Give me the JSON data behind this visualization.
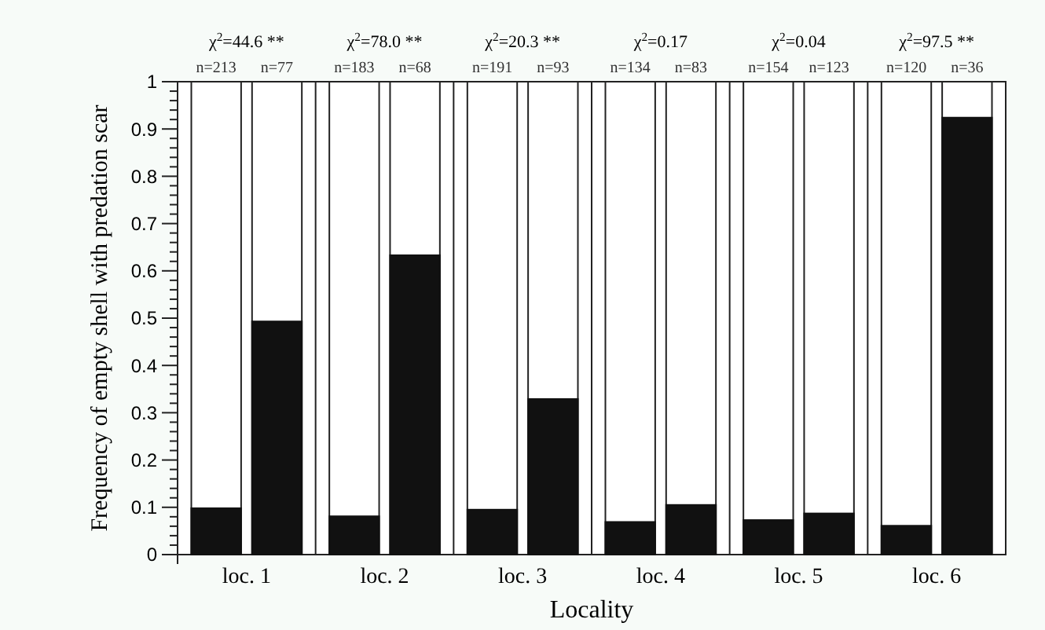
{
  "chart_data": {
    "type": "bar",
    "xlabel": "Locality",
    "ylabel": "Frequency of empty shell with predation scar",
    "categories": [
      "loc. 1",
      "loc. 2",
      "loc. 3",
      "loc. 4",
      "loc. 5",
      "loc. 6"
    ],
    "series": [
      {
        "color": "#111111",
        "values": [
          0.098,
          0.081,
          0.095,
          0.069,
          0.073,
          0.061
        ]
      },
      {
        "color": "#111111",
        "values": [
          0.493,
          0.633,
          0.329,
          0.105,
          0.087,
          0.924
        ]
      }
    ],
    "ylim": [
      0,
      1
    ],
    "yticks": [
      0,
      {
        "value": 0.02,
        "label": null
      },
      {
        "value": 0.04,
        "label": null
      },
      {
        "value": 0.06,
        "label": null
      },
      {
        "value": 0.08,
        "label": null
      },
      0.1,
      {
        "value": 0.12,
        "label": null
      },
      {
        "value": 0.14,
        "label": null
      },
      {
        "value": 0.16,
        "label": null
      },
      {
        "value": 0.18,
        "label": null
      },
      0.2,
      {
        "value": 0.22,
        "label": null
      },
      {
        "value": 0.24,
        "label": null
      },
      {
        "value": 0.26,
        "label": null
      },
      {
        "value": 0.28,
        "label": null
      },
      0.3,
      {
        "value": 0.32,
        "label": null
      },
      {
        "value": 0.34,
        "label": null
      },
      {
        "value": 0.36,
        "label": null
      },
      {
        "value": 0.38,
        "label": null
      },
      0.4,
      {
        "value": 0.42,
        "label": null
      },
      {
        "value": 0.44,
        "label": null
      },
      {
        "value": 0.46,
        "label": null
      },
      {
        "value": 0.48,
        "label": null
      },
      0.5,
      {
        "value": 0.52,
        "label": null
      },
      {
        "value": 0.54,
        "label": null
      },
      {
        "value": 0.56,
        "label": null
      },
      {
        "value": 0.58,
        "label": null
      },
      0.6,
      {
        "value": 0.62,
        "label": null
      },
      {
        "value": 0.64,
        "label": null
      },
      {
        "value": 0.66,
        "label": null
      },
      {
        "value": 0.68,
        "label": null
      },
      0.7,
      {
        "value": 0.72,
        "label": null
      },
      {
        "value": 0.74,
        "label": null
      },
      {
        "value": 0.76,
        "label": null
      },
      {
        "value": 0.78,
        "label": null
      },
      0.8,
      {
        "value": 0.82,
        "label": null
      },
      {
        "value": 0.84,
        "label": null
      },
      {
        "value": 0.86,
        "label": null
      },
      {
        "value": 0.88,
        "label": null
      },
      0.9,
      {
        "value": 0.92,
        "label": null
      },
      {
        "value": 0.94,
        "label": null
      },
      {
        "value": 0.96,
        "label": null
      },
      {
        "value": 0.98,
        "label": null
      },
      1
    ],
    "annotations": [
      "χ$^{2}$=44.6 **",
      "n=213",
      "n=77",
      "χ$^{2}$=78.0 **",
      "n=183",
      "n=68",
      "χ$^{2}$=20.3 **",
      "n=191",
      "n=93",
      "χ$^{2}$=0.17",
      "n=134",
      "n=83",
      "χ$^{2}$=0.04",
      "n=154",
      "n=123",
      "χ$^{2}$=97.5 **",
      "n=120",
      "n=36"
    ]
  }
}
